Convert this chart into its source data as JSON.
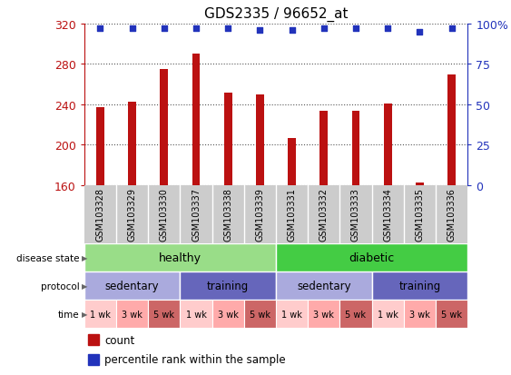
{
  "title": "GDS2335 / 96652_at",
  "samples": [
    "GSM103328",
    "GSM103329",
    "GSM103330",
    "GSM103337",
    "GSM103338",
    "GSM103339",
    "GSM103331",
    "GSM103332",
    "GSM103333",
    "GSM103334",
    "GSM103335",
    "GSM103336"
  ],
  "counts": [
    237,
    243,
    275,
    290,
    252,
    250,
    207,
    234,
    234,
    241,
    163,
    270
  ],
  "percentile_ranks": [
    97,
    97,
    97,
    97,
    97,
    96,
    96,
    97,
    97,
    97,
    95,
    97
  ],
  "bar_color": "#bb1111",
  "dot_color": "#2233bb",
  "ylim_left": [
    160,
    320
  ],
  "ylim_right": [
    0,
    100
  ],
  "yticks_left": [
    160,
    200,
    240,
    280,
    320
  ],
  "yticks_right": [
    0,
    25,
    50,
    75,
    100
  ],
  "ytick_labels_right": [
    "0",
    "25",
    "50",
    "75",
    "100%"
  ],
  "disease_state": [
    {
      "label": "healthy",
      "span": [
        0,
        6
      ],
      "color": "#99dd88"
    },
    {
      "label": "diabetic",
      "span": [
        6,
        12
      ],
      "color": "#44cc44"
    }
  ],
  "protocol": [
    {
      "label": "sedentary",
      "span": [
        0,
        3
      ],
      "color": "#aaaadd"
    },
    {
      "label": "training",
      "span": [
        3,
        6
      ],
      "color": "#6666bb"
    },
    {
      "label": "sedentary",
      "span": [
        6,
        9
      ],
      "color": "#aaaadd"
    },
    {
      "label": "training",
      "span": [
        9,
        12
      ],
      "color": "#6666bb"
    }
  ],
  "time": [
    {
      "label": "1 wk",
      "span": [
        0,
        1
      ],
      "color": "#ffcccc"
    },
    {
      "label": "3 wk",
      "span": [
        1,
        2
      ],
      "color": "#ffaaaa"
    },
    {
      "label": "5 wk",
      "span": [
        2,
        3
      ],
      "color": "#cc6666"
    },
    {
      "label": "1 wk",
      "span": [
        3,
        4
      ],
      "color": "#ffcccc"
    },
    {
      "label": "3 wk",
      "span": [
        4,
        5
      ],
      "color": "#ffaaaa"
    },
    {
      "label": "5 wk",
      "span": [
        5,
        6
      ],
      "color": "#cc6666"
    },
    {
      "label": "1 wk",
      "span": [
        6,
        7
      ],
      "color": "#ffcccc"
    },
    {
      "label": "3 wk",
      "span": [
        7,
        8
      ],
      "color": "#ffaaaa"
    },
    {
      "label": "5 wk",
      "span": [
        8,
        9
      ],
      "color": "#cc6666"
    },
    {
      "label": "1 wk",
      "span": [
        9,
        10
      ],
      "color": "#ffcccc"
    },
    {
      "label": "3 wk",
      "span": [
        10,
        11
      ],
      "color": "#ffaaaa"
    },
    {
      "label": "5 wk",
      "span": [
        11,
        12
      ],
      "color": "#cc6666"
    }
  ],
  "label_bg_color": "#cccccc",
  "label_line_color": "#888888",
  "background_color": "#ffffff",
  "grid_color": "#555555",
  "bar_width": 0.25
}
